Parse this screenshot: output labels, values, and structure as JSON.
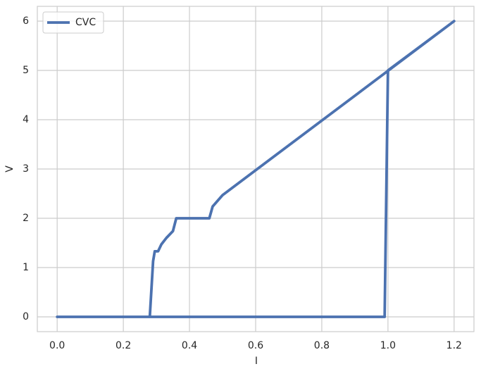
{
  "chart_data": {
    "type": "line",
    "xlabel": "I",
    "ylabel": "V",
    "x": [
      0,
      0.99,
      1.0,
      1.2,
      0.5,
      0.47,
      0.46,
      0.36,
      0.35,
      0.33,
      0.315,
      0.305,
      0.295,
      0.29,
      0.28,
      0
    ],
    "series": [
      {
        "name": "CVC",
        "color": "#4c72b0",
        "values": [
          0,
          0,
          5,
          6,
          2.47,
          2.24,
          2,
          2,
          1.74,
          1.6,
          1.47,
          1.33,
          1.33,
          1.13,
          0,
          0
        ]
      }
    ],
    "xlim": [
      -0.06,
      1.26
    ],
    "ylim": [
      -0.3,
      6.3
    ],
    "xticks": [
      {
        "value": 0,
        "label": "0.0"
      },
      0.2,
      0.4,
      0.6,
      0.8,
      {
        "value": 1,
        "label": "1.0"
      },
      1.2
    ],
    "yticks": [
      0,
      1,
      2,
      3,
      4,
      5,
      6
    ],
    "grid": true,
    "legend": "upper left"
  }
}
